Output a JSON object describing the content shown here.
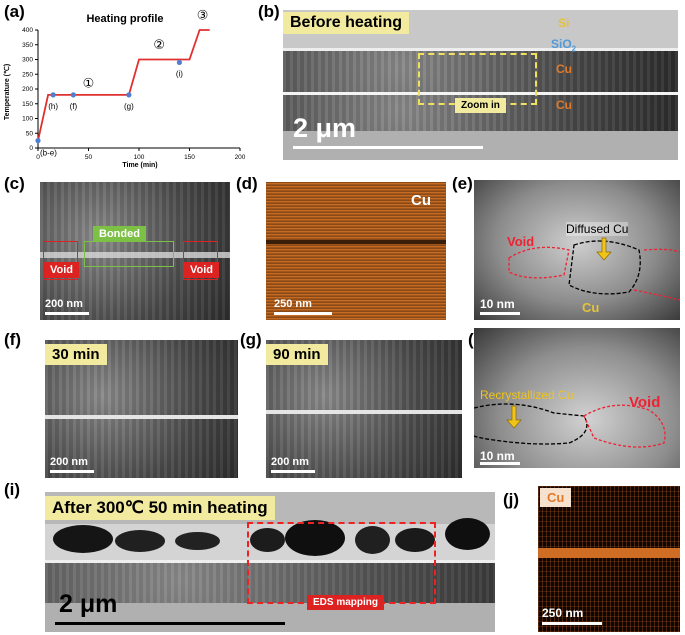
{
  "labels": {
    "a": "(a)",
    "b": "(b)",
    "c": "(c)",
    "d": "(d)",
    "e": "(e)",
    "f": "(f)",
    "g": "(g)",
    "h": "(h)",
    "i": "(i)",
    "j": "(j)"
  },
  "chart_data": {
    "type": "line",
    "title": "Heating profile",
    "xlabel": "Time (min)",
    "ylabel": "Temperature (℃)",
    "xlim": [
      0,
      200
    ],
    "ylim": [
      0,
      400
    ],
    "xticks": [
      0,
      50,
      100,
      150,
      200
    ],
    "yticks": [
      0,
      50,
      100,
      150,
      200,
      250,
      300,
      350,
      400
    ],
    "series": [
      {
        "points": [
          [
            0,
            25
          ],
          [
            10,
            180
          ],
          [
            90,
            180
          ],
          [
            100,
            300
          ],
          [
            150,
            300
          ],
          [
            160,
            400
          ],
          [
            170,
            400
          ]
        ]
      }
    ],
    "markers": [
      {
        "label": "(b-e)",
        "x": 0,
        "y": 25
      },
      {
        "label": "(h)",
        "x": 15,
        "y": 180
      },
      {
        "label": "(f)",
        "x": 35,
        "y": 180
      },
      {
        "label": "(g)",
        "x": 90,
        "y": 180
      },
      {
        "label": "(i)",
        "x": 140,
        "y": 290
      }
    ],
    "stages": [
      {
        "label": "①",
        "x": 50,
        "y": 205
      },
      {
        "label": "②",
        "x": 120,
        "y": 335
      },
      {
        "label": "③",
        "x": 163,
        "y": 435
      }
    ],
    "colors": {
      "line": "#e03030",
      "marker": "#4f7fd0"
    }
  },
  "panel_b": {
    "tag": "Before heating",
    "layers": [
      {
        "name": "Si",
        "color": "#e6c23a"
      },
      {
        "name": "SiO",
        "sub": "2",
        "color": "#4f9ad8"
      },
      {
        "name": "Cu",
        "color": "#e07a2a"
      },
      {
        "name": "Cu",
        "color": "#e07a2a"
      }
    ],
    "zoom_label": "Zoom in",
    "scalebar": "2 μm"
  },
  "panel_c": {
    "bonded": "Bonded",
    "void_left": "Void",
    "void_right": "Void",
    "scalebar": "200 nm"
  },
  "panel_d": {
    "element": "Cu",
    "scalebar": "250 nm"
  },
  "panel_e": {
    "diffused": "Diffused Cu",
    "void": "Void",
    "cu": "Cu",
    "scalebar": "10 nm"
  },
  "panel_f": {
    "tag": "30 min",
    "scalebar": "200 nm"
  },
  "panel_g": {
    "tag": "90 min",
    "scalebar": "200 nm"
  },
  "panel_h": {
    "recryst": "Recrystallized Cu",
    "void": "Void",
    "scalebar": "10 nm"
  },
  "panel_i": {
    "tag": "After 300℃ 50 min heating",
    "eds": "EDS mapping",
    "scalebar": "2 μm"
  },
  "panel_j": {
    "element": "Cu",
    "scalebar": "250 nm"
  }
}
